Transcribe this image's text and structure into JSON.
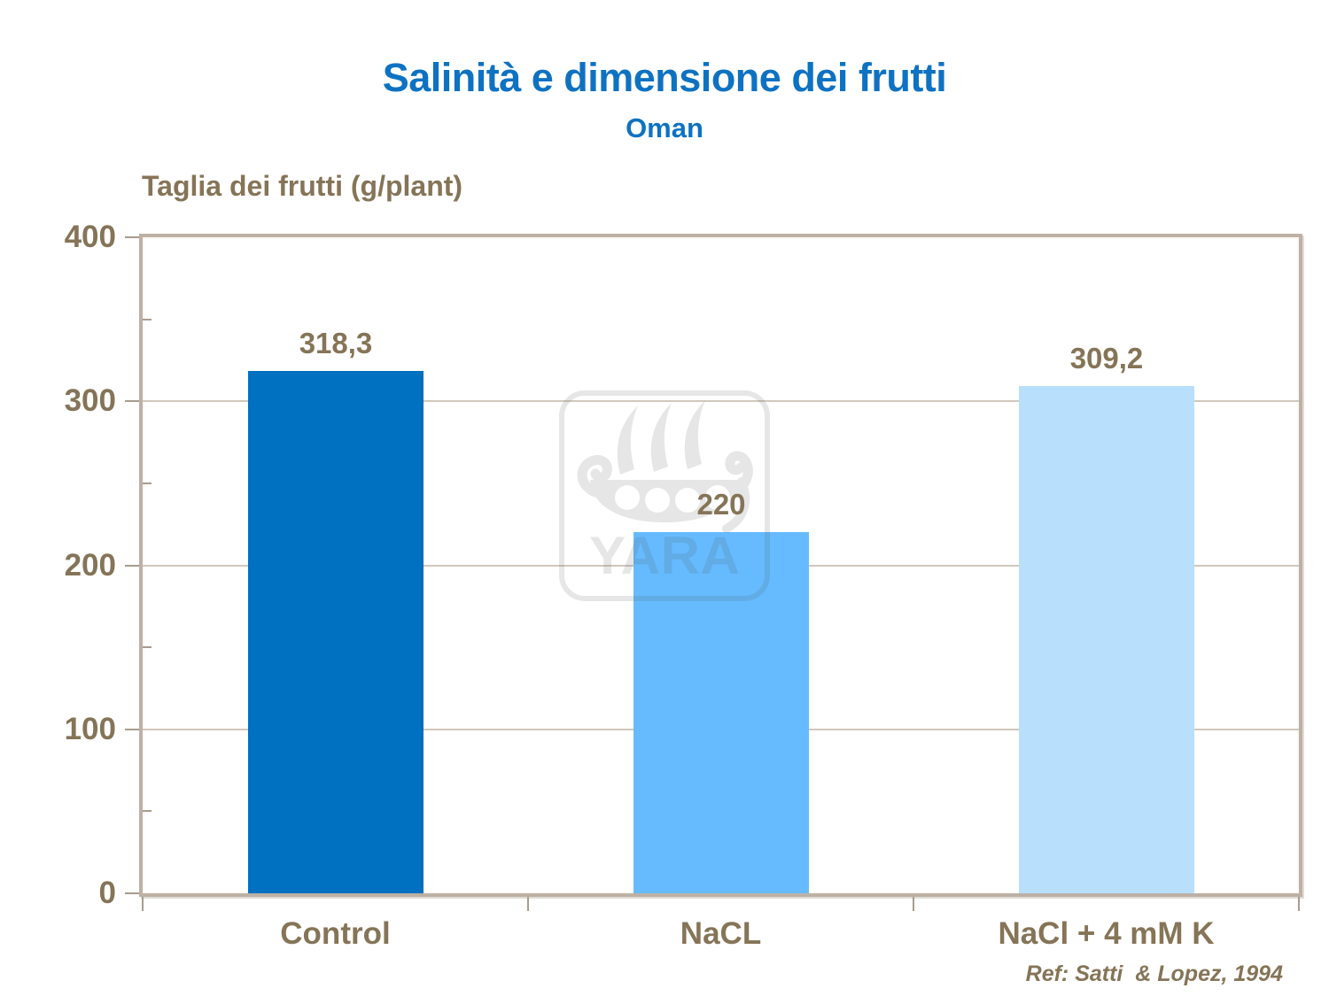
{
  "slide": {
    "title": "Salinità e dimensione dei frutti",
    "subtitle": "Oman",
    "reference": "Ref: Satti  & Lopez, 1994"
  },
  "watermark": {
    "label": "YARA",
    "apparent_color": "#e9e9e9"
  },
  "colors": {
    "title_blue": "#0e72c2",
    "text_brown": "#857457",
    "frame_border": "#bcb1a4",
    "gridline": "#d0c8bc",
    "axis_tick": "#a89c8e",
    "background": "#ffffff",
    "bar_control": "#0070c0",
    "bar_nacl": "#66bbff",
    "bar_nacl_k": "#b8dffc"
  },
  "chart_data": {
    "type": "bar",
    "title": "Salinità e dimensione dei frutti",
    "subtitle": "Oman",
    "xlabel": "",
    "ylabel": "Taglia dei frutti (g/plant)",
    "categories": [
      "Control",
      "NaCL",
      "NaCl + 4 mM K"
    ],
    "values": [
      318.3,
      220,
      309.2
    ],
    "value_labels": [
      "318,3",
      "220",
      "309,2"
    ],
    "bar_colors": [
      "#0070c0",
      "#66bbff",
      "#b8dffc"
    ],
    "ylim": [
      0,
      400
    ],
    "yticks": [
      0,
      100,
      200,
      300,
      400
    ],
    "ytick_major": 100,
    "ytick_minor": 50,
    "grid": "horizontal-major",
    "legend": "none",
    "reference": "Ref: Satti  & Lopez, 1994"
  }
}
